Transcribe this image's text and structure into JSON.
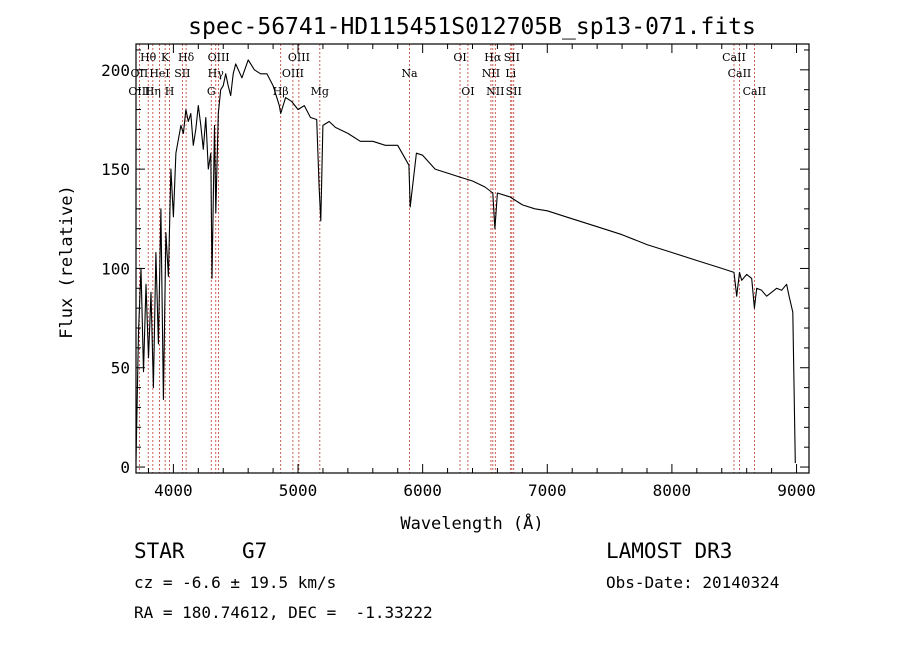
{
  "chart_data": {
    "type": "line",
    "title": "spec-56741-HD115451S012705B_sp13-071.fits",
    "xlabel": "Wavelength (Å)",
    "ylabel": "Flux (relative)",
    "xlim": [
      3700,
      9100
    ],
    "ylim": [
      -3,
      213
    ],
    "xticks": [
      4000,
      5000,
      6000,
      7000,
      8000,
      9000
    ],
    "yticks": [
      0,
      50,
      100,
      150,
      200
    ],
    "grid": false,
    "colors": {
      "spectrum": "#000000",
      "lines": "#c0392b"
    },
    "series": [
      {
        "name": "spectrum",
        "x": [
          3700,
          3720,
          3740,
          3760,
          3780,
          3800,
          3820,
          3840,
          3860,
          3880,
          3900,
          3920,
          3940,
          3960,
          3980,
          4000,
          4020,
          4040,
          4060,
          4080,
          4100,
          4120,
          4140,
          4160,
          4180,
          4200,
          4220,
          4240,
          4260,
          4280,
          4300,
          4310,
          4330,
          4340,
          4360,
          4380,
          4400,
          4420,
          4440,
          4460,
          4480,
          4500,
          4550,
          4600,
          4650,
          4700,
          4750,
          4800,
          4850,
          4861,
          4880,
          4900,
          4950,
          5000,
          5050,
          5100,
          5150,
          5170,
          5183,
          5200,
          5250,
          5300,
          5400,
          5500,
          5600,
          5700,
          5800,
          5890,
          5900,
          5950,
          6000,
          6100,
          6200,
          6300,
          6400,
          6500,
          6563,
          6580,
          6600,
          6700,
          6800,
          6900,
          7000,
          7200,
          7400,
          7600,
          7800,
          8000,
          8200,
          8400,
          8498,
          8520,
          8542,
          8560,
          8600,
          8640,
          8662,
          8680,
          8720,
          8760,
          8800,
          8840,
          8880,
          8920,
          8940,
          8970,
          8990
        ],
        "y": [
          3,
          68,
          100,
          48,
          92,
          55,
          88,
          40,
          108,
          62,
          130,
          34,
          118,
          96,
          150,
          126,
          158,
          165,
          172,
          168,
          180,
          174,
          178,
          162,
          170,
          182,
          172,
          160,
          176,
          150,
          158,
          95,
          172,
          128,
          178,
          190,
          192,
          198,
          192,
          187,
          198,
          203,
          196,
          205,
          200,
          198,
          198,
          192,
          182,
          178,
          182,
          186,
          184,
          180,
          182,
          176,
          175,
          140,
          124,
          172,
          174,
          171,
          168,
          164,
          164,
          162,
          162,
          152,
          131,
          158,
          157,
          150,
          148,
          146,
          144,
          141,
          138,
          120,
          138,
          136,
          132,
          130,
          129,
          125,
          121,
          117,
          112,
          108,
          104,
          100,
          98,
          86,
          98,
          94,
          97,
          95,
          80,
          90,
          89,
          86,
          88,
          90,
          89,
          92,
          86,
          78,
          2
        ]
      }
    ],
    "line_ids": [
      {
        "label": "Hθ",
        "wl": 3798,
        "row": 1
      },
      {
        "label": "OII",
        "wl": 3727,
        "row": 2
      },
      {
        "label": "OIII",
        "wl": 3727,
        "row": 3
      },
      {
        "label": "K",
        "wl": 3934,
        "row": 1
      },
      {
        "label": "HeI",
        "wl": 3889,
        "row": 2
      },
      {
        "label": "Hη",
        "wl": 3835,
        "row": 3
      },
      {
        "label": "SII",
        "wl": 4072,
        "row": 2
      },
      {
        "label": "H",
        "wl": 3969,
        "row": 3
      },
      {
        "label": "Hδ",
        "wl": 4102,
        "row": 1
      },
      {
        "label": "OIII",
        "wl": 4363,
        "row": 1
      },
      {
        "label": "Hγ",
        "wl": 4340,
        "row": 2
      },
      {
        "label": "G",
        "wl": 4304,
        "row": 3
      },
      {
        "label": "OIII",
        "wl": 5007,
        "row": 1
      },
      {
        "label": "OIII",
        "wl": 4959,
        "row": 2
      },
      {
        "label": "Hβ",
        "wl": 4861,
        "row": 3
      },
      {
        "label": "Mg",
        "wl": 5175,
        "row": 3
      },
      {
        "label": "Na",
        "wl": 5894,
        "row": 2
      },
      {
        "label": "OI",
        "wl": 6300,
        "row": 1
      },
      {
        "label": "OI",
        "wl": 6363,
        "row": 3
      },
      {
        "label": "Hα",
        "wl": 6563,
        "row": 1
      },
      {
        "label": "SII",
        "wl": 6716,
        "row": 1
      },
      {
        "label": "NII",
        "wl": 6548,
        "row": 2
      },
      {
        "label": "Li",
        "wl": 6707,
        "row": 2
      },
      {
        "label": "NII",
        "wl": 6583,
        "row": 3
      },
      {
        "label": "SII",
        "wl": 6731,
        "row": 3
      },
      {
        "label": "CaII",
        "wl": 8498,
        "row": 1
      },
      {
        "label": "CaII",
        "wl": 8542,
        "row": 2
      },
      {
        "label": "CaII",
        "wl": 8662,
        "row": 3
      }
    ]
  },
  "footer": {
    "object_class": "STAR",
    "subclass": "G7",
    "survey": "LAMOST DR3",
    "velocity": "cz = -6.6 ± 19.5 km/s",
    "obs_date": "Obs-Date: 20140324",
    "coords": "RA = 180.74612, DEC =  -1.33222"
  }
}
